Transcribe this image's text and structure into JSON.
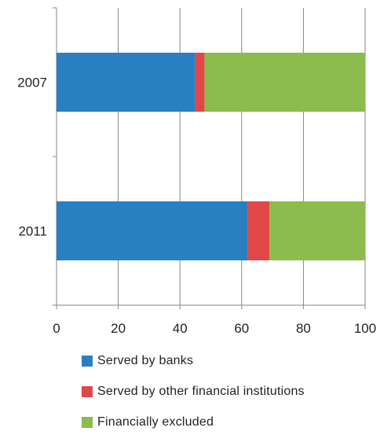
{
  "chart_data": {
    "type": "bar",
    "orientation": "horizontal",
    "stacked": true,
    "categories": [
      "2007",
      "2011"
    ],
    "series": [
      {
        "name": "Served by banks",
        "color": "#2a7fc1",
        "values": [
          45,
          62
        ]
      },
      {
        "name": "Served by other financial institutions",
        "color": "#e04848",
        "values": [
          3,
          7
        ]
      },
      {
        "name": "Financially excluded",
        "color": "#8cbb4e",
        "values": [
          52,
          31
        ]
      }
    ],
    "xlim": [
      0,
      100
    ],
    "xticks": [
      0,
      20,
      40,
      60,
      80,
      100
    ],
    "title": "",
    "xlabel": "",
    "ylabel": "",
    "grid": "vertical",
    "legend_position": "bottom"
  }
}
